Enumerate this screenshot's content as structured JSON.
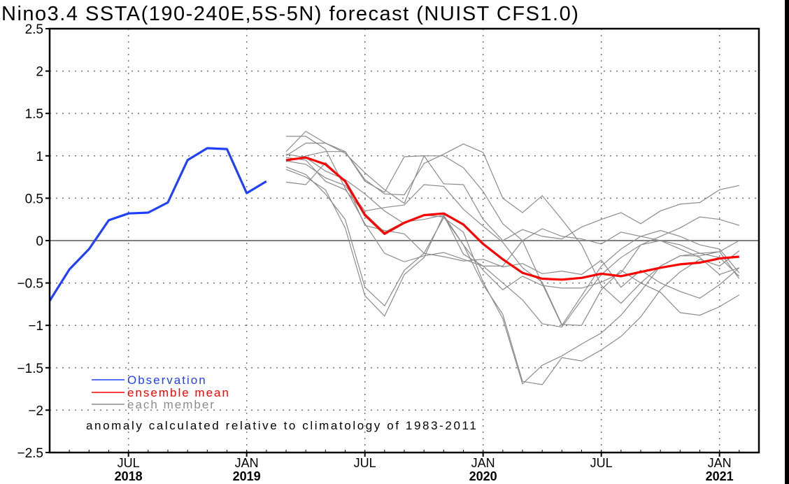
{
  "chart_data": {
    "type": "line",
    "title": "Nino3.4 SSTA(190-240E,5S-5N) forecast (NUIST CFS1.0)",
    "xlabel": "",
    "ylabel": "",
    "ylim": [
      -2.5,
      2.5
    ],
    "yticks": [
      -2.5,
      -2,
      -1.5,
      -1,
      -0.5,
      0,
      0.5,
      1,
      1.5,
      2,
      2.5
    ],
    "ytick_labels": [
      "-2.5",
      "-2",
      "-1.5",
      "-1",
      "-0.5",
      "0",
      "0.5",
      "1",
      "1.5",
      "2",
      "2.5"
    ],
    "xlim_months": [
      "2018-03",
      "2021-03"
    ],
    "xticks": [
      {
        "month": "2018-07",
        "label": "JUL",
        "year": "2018"
      },
      {
        "month": "2019-01",
        "label": "JAN",
        "year": "2019"
      },
      {
        "month": "2019-07",
        "label": "JUL",
        "year": ""
      },
      {
        "month": "2020-01",
        "label": "JAN",
        "year": "2020"
      },
      {
        "month": "2020-07",
        "label": "JUL",
        "year": ""
      },
      {
        "month": "2021-01",
        "label": "JAN",
        "year": "2021"
      }
    ],
    "grid": true,
    "legend_placement": "bottom-left",
    "annotation": "anomaly calculated relative to climatology of 1983-2011",
    "series": [
      {
        "name": "Observation",
        "color": "#2040ff",
        "start": "2018-03",
        "values": [
          -0.71,
          -0.34,
          -0.1,
          0.24,
          0.32,
          0.33,
          0.45,
          0.95,
          1.09,
          1.08,
          0.56,
          0.7
        ]
      },
      {
        "name": "ensemble mean",
        "color": "#ff0000",
        "start": "2019-03",
        "values": [
          0.95,
          0.98,
          0.9,
          0.7,
          0.3,
          0.08,
          0.21,
          0.3,
          0.32,
          0.19,
          -0.04,
          -0.22,
          -0.38,
          -0.45,
          -0.46,
          -0.44,
          -0.39,
          -0.42,
          -0.37,
          -0.32,
          -0.28,
          -0.26,
          -0.21,
          -0.19
        ]
      },
      {
        "name": "each member",
        "color": "#8c8c8c",
        "start": "2019-03",
        "members": [
          [
            1.23,
            1.23,
            1.08,
            0.62,
            0.2,
            -0.15,
            -0.25,
            -0.18,
            -0.14,
            -0.22,
            -0.3,
            -0.5,
            -0.7,
            -0.98,
            -1.02,
            -0.7,
            -0.4,
            -0.2,
            -0.05,
            0.05,
            0.15,
            0.28,
            0.25,
            0.18
          ],
          [
            1.05,
            1.29,
            1.15,
            1.05,
            0.72,
            0.55,
            0.54,
            0.91,
            1.02,
            1.14,
            1.04,
            0.5,
            0.33,
            0.53,
            0.25,
            -0.05,
            -0.53,
            -0.74,
            -0.5,
            -0.3,
            -0.18,
            -0.15,
            -0.2,
            -0.42
          ],
          [
            1.0,
            1.15,
            1.15,
            1.03,
            0.8,
            0.6,
            0.44,
            1.0,
            1.0,
            0.86,
            0.58,
            0.2,
            0.0,
            -0.51,
            -1.0,
            -0.65,
            -0.3,
            -0.1,
            0.05,
            0.12,
            0.05,
            -0.05,
            -0.1,
            -0.38
          ],
          [
            0.93,
            1.0,
            1.05,
            1.05,
            0.7,
            0.57,
            0.99,
            1.0,
            0.67,
            0.66,
            0.25,
            0.0,
            0.13,
            0.05,
            0.02,
            0.16,
            0.25,
            0.33,
            0.2,
            0.35,
            0.43,
            0.45,
            0.6,
            0.65
          ],
          [
            0.94,
            0.9,
            0.74,
            0.65,
            0.35,
            0.39,
            0.42,
            0.66,
            0.64,
            0.37,
            0.17,
            -0.02,
            -0.32,
            -0.49,
            -0.99,
            -1.0,
            -0.58,
            -0.35,
            -0.5,
            -0.61,
            -0.85,
            -0.88,
            -0.78,
            -0.64
          ],
          [
            0.87,
            0.78,
            0.55,
            0.25,
            -0.55,
            -0.77,
            -0.35,
            -0.15,
            0.27,
            0.1,
            -0.49,
            -0.92,
            -1.69,
            -1.47,
            -1.36,
            -1.22,
            -1.09,
            -0.88,
            -0.6,
            -0.3,
            -0.18,
            -0.18,
            -0.13,
            -0.45
          ],
          [
            0.84,
            0.75,
            0.6,
            0.15,
            -0.65,
            -0.89,
            -0.4,
            -0.2,
            0.3,
            -0.05,
            -0.52,
            -0.87,
            -1.66,
            -1.7,
            -1.38,
            -1.42,
            -1.29,
            -1.13,
            -0.9,
            -0.58,
            -0.37,
            -0.22,
            -0.3,
            -0.12
          ],
          [
            0.69,
            0.66,
            0.92,
            0.7,
            0.18,
            0.12,
            0.08,
            -0.15,
            -0.19,
            -0.24,
            -0.22,
            -0.31,
            -0.27,
            -0.39,
            -0.36,
            -0.4,
            -0.23,
            -0.55,
            -0.35,
            -0.5,
            -0.6,
            -0.68,
            -0.52,
            -0.32
          ],
          [
            0.98,
            0.95,
            0.7,
            0.6,
            0.32,
            0.1,
            0.22,
            0.25,
            0.3,
            -0.16,
            -0.3,
            -0.3,
            0.0,
            0.14,
            0.05,
            0.02,
            -0.04,
            0.1,
            0.05,
            0.0,
            -0.05,
            -0.15,
            -0.13,
            0.0
          ],
          [
            1.02,
            0.98,
            0.82,
            0.72,
            0.55,
            0.35,
            0.2,
            0.3,
            0.28,
            -0.05,
            -0.35,
            -0.58,
            -0.42,
            -0.53,
            -0.56,
            -0.56,
            -0.49,
            -0.38,
            -0.05,
            0.0,
            -0.1,
            -0.2,
            -0.4,
            -0.32
          ]
        ]
      }
    ]
  }
}
